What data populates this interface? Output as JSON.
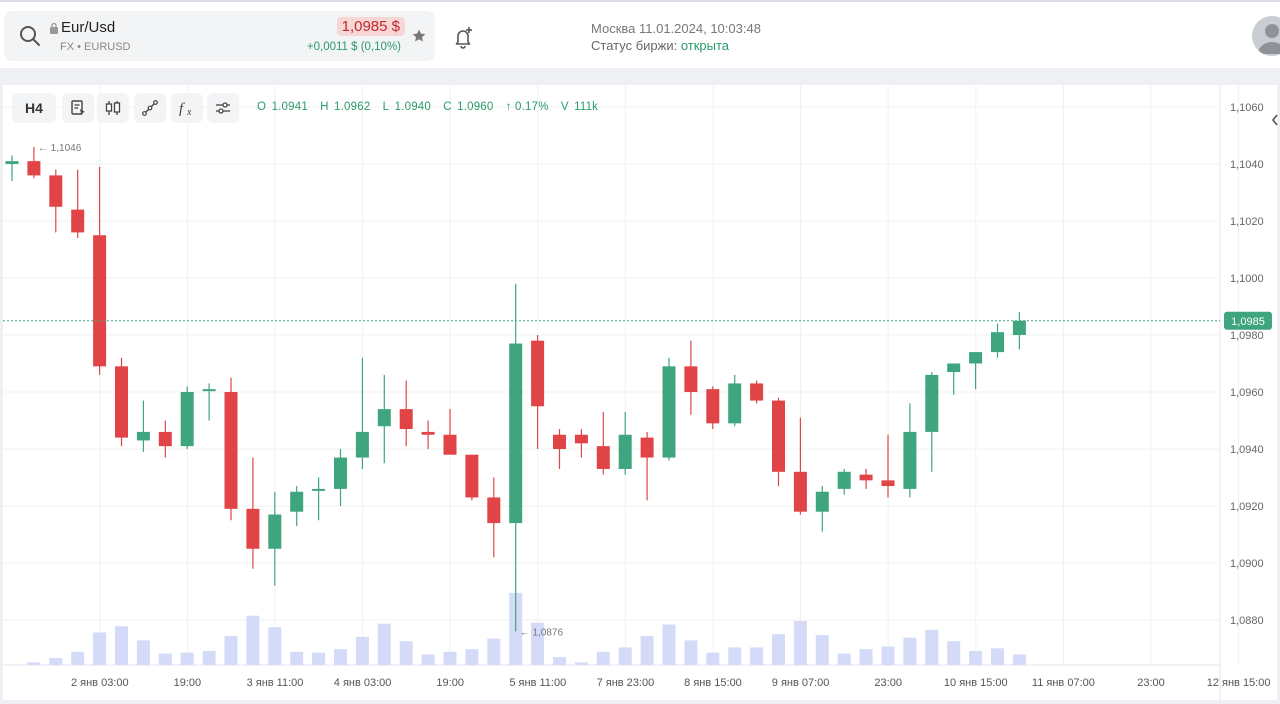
{
  "header": {
    "symbol": "Eur/Usd",
    "market": "FX",
    "ticker": "EURUSD",
    "price": "1,0985 $",
    "change": "+0,0011 $ (0,10%)",
    "city_time": "Москва 11.01.2024, 10:03:48",
    "status_label": "Статус биржи:",
    "status_value": "открыта"
  },
  "toolbar": {
    "timeframe": "H4",
    "ohlc": {
      "o_label": "O",
      "o": "1.0941",
      "h_label": "H",
      "h": "1.0962",
      "l_label": "L",
      "l": "1.0940",
      "c_label": "C",
      "c": "1.0960",
      "chg": "↑ 0.17%",
      "v_label": "V",
      "v": "111k"
    }
  },
  "colors": {
    "up": "#3fa57e",
    "down": "#e04446",
    "volume": "#d4dbf8",
    "price_line": "#3fa57e"
  },
  "chart_data": {
    "type": "candlestick",
    "ylim": [
      1.0865,
      1.107
    ],
    "y_ticks": [
      "1,1060",
      "1,1040",
      "1,1020",
      "1,1000",
      "1,0980",
      "1,0960",
      "1,0940",
      "1,0920",
      "1,0900",
      "1,0880"
    ],
    "y_tick_values": [
      1.106,
      1.104,
      1.102,
      1.1,
      1.098,
      1.096,
      1.094,
      1.092,
      1.09,
      1.088
    ],
    "x_ticks": [
      "2 янв 03:00",
      "19:00",
      "3 янв 11:00",
      "4 янв 03:00",
      "19:00",
      "5 янв 11:00",
      "7 янв 23:00",
      "8 янв 15:00",
      "9 янв 07:00",
      "23:00",
      "10 янв 15:00",
      "11 янв 07:00",
      "23:00",
      "12 янв 15:00"
    ],
    "x_tick_index": [
      2,
      6,
      10,
      14,
      18,
      22,
      26,
      30,
      34,
      38,
      42,
      46,
      50,
      54
    ],
    "current_price": 1.0985,
    "current_price_label": "1,0985",
    "annotations": [
      {
        "index": 1,
        "value": 1.1046,
        "label": "1,1046"
      },
      {
        "index": 23,
        "value": 1.0876,
        "label": "1,0876"
      }
    ],
    "candles": [
      {
        "o": 1.104,
        "h": 1.1043,
        "l": 1.1034,
        "c": 1.1041,
        "v": 0
      },
      {
        "o": 1.1041,
        "h": 1.1046,
        "l": 1.1035,
        "c": 1.1036,
        "v": 3
      },
      {
        "o": 1.1036,
        "h": 1.1038,
        "l": 1.1016,
        "c": 1.1025,
        "v": 8
      },
      {
        "o": 1.1024,
        "h": 1.1038,
        "l": 1.1014,
        "c": 1.1016,
        "v": 15
      },
      {
        "o": 1.1015,
        "h": 1.1039,
        "l": 1.0966,
        "c": 1.0969,
        "v": 37
      },
      {
        "o": 1.0969,
        "h": 1.0972,
        "l": 1.0941,
        "c": 1.0944,
        "v": 44
      },
      {
        "o": 1.0943,
        "h": 1.0957,
        "l": 1.0939,
        "c": 1.0946,
        "v": 28
      },
      {
        "o": 1.0946,
        "h": 1.095,
        "l": 1.0937,
        "c": 1.0941,
        "v": 13
      },
      {
        "o": 1.0941,
        "h": 1.0962,
        "l": 1.094,
        "c": 1.096,
        "v": 14
      },
      {
        "o": 1.0961,
        "h": 1.0963,
        "l": 1.095,
        "c": 1.0961,
        "v": 16
      },
      {
        "o": 1.096,
        "h": 1.0965,
        "l": 1.0915,
        "c": 1.0919,
        "v": 33
      },
      {
        "o": 1.0919,
        "h": 1.0937,
        "l": 1.0898,
        "c": 1.0905,
        "v": 56
      },
      {
        "o": 1.0905,
        "h": 1.0925,
        "l": 1.0892,
        "c": 1.0917,
        "v": 43
      },
      {
        "o": 1.0918,
        "h": 1.0927,
        "l": 1.0913,
        "c": 1.0925,
        "v": 15
      },
      {
        "o": 1.0926,
        "h": 1.093,
        "l": 1.0915,
        "c": 1.0926,
        "v": 14
      },
      {
        "o": 1.0926,
        "h": 1.094,
        "l": 1.092,
        "c": 1.0937,
        "v": 18
      },
      {
        "o": 1.0937,
        "h": 1.0972,
        "l": 1.0933,
        "c": 1.0946,
        "v": 32
      },
      {
        "o": 1.0948,
        "h": 1.0966,
        "l": 1.0935,
        "c": 1.0954,
        "v": 47
      },
      {
        "o": 1.0954,
        "h": 1.0964,
        "l": 1.0941,
        "c": 1.0947,
        "v": 27
      },
      {
        "o": 1.0946,
        "h": 1.095,
        "l": 1.094,
        "c": 1.0945,
        "v": 12
      },
      {
        "o": 1.0945,
        "h": 1.0954,
        "l": 1.0938,
        "c": 1.0938,
        "v": 15
      },
      {
        "o": 1.0938,
        "h": 1.0938,
        "l": 1.0922,
        "c": 1.0923,
        "v": 18
      },
      {
        "o": 1.0923,
        "h": 1.093,
        "l": 1.0902,
        "c": 1.0914,
        "v": 30
      },
      {
        "o": 1.0914,
        "h": 1.0998,
        "l": 1.0876,
        "c": 1.0977,
        "v": 82
      },
      {
        "o": 1.0978,
        "h": 1.098,
        "l": 1.094,
        "c": 1.0955,
        "v": 48
      },
      {
        "o": 1.0945,
        "h": 1.0947,
        "l": 1.0933,
        "c": 1.094,
        "v": 9
      },
      {
        "o": 1.0945,
        "h": 1.0947,
        "l": 1.0937,
        "c": 1.0942,
        "v": 3
      },
      {
        "o": 1.0941,
        "h": 1.0953,
        "l": 1.0931,
        "c": 1.0933,
        "v": 15
      },
      {
        "o": 1.0933,
        "h": 1.0953,
        "l": 1.0931,
        "c": 1.0945,
        "v": 20
      },
      {
        "o": 1.0944,
        "h": 1.0946,
        "l": 1.0922,
        "c": 1.0937,
        "v": 33
      },
      {
        "o": 1.0937,
        "h": 1.0972,
        "l": 1.0936,
        "c": 1.0969,
        "v": 46
      },
      {
        "o": 1.0969,
        "h": 1.0978,
        "l": 1.0952,
        "c": 1.096,
        "v": 28
      },
      {
        "o": 1.0961,
        "h": 1.0962,
        "l": 1.0947,
        "c": 1.0949,
        "v": 14
      },
      {
        "o": 1.0949,
        "h": 1.0966,
        "l": 1.0948,
        "c": 1.0963,
        "v": 20
      },
      {
        "o": 1.0963,
        "h": 1.0964,
        "l": 1.0956,
        "c": 1.0957,
        "v": 20
      },
      {
        "o": 1.0957,
        "h": 1.0958,
        "l": 1.0927,
        "c": 1.0932,
        "v": 35
      },
      {
        "o": 1.0932,
        "h": 1.0951,
        "l": 1.0917,
        "c": 1.0918,
        "v": 50
      },
      {
        "o": 1.0918,
        "h": 1.0927,
        "l": 1.0911,
        "c": 1.0925,
        "v": 34
      },
      {
        "o": 1.0926,
        "h": 1.0933,
        "l": 1.0924,
        "c": 1.0932,
        "v": 13
      },
      {
        "o": 1.0931,
        "h": 1.0933,
        "l": 1.0926,
        "c": 1.0929,
        "v": 18
      },
      {
        "o": 1.0929,
        "h": 1.0945,
        "l": 1.0923,
        "c": 1.0927,
        "v": 21
      },
      {
        "o": 1.0926,
        "h": 1.0956,
        "l": 1.0923,
        "c": 1.0946,
        "v": 31
      },
      {
        "o": 1.0946,
        "h": 1.0967,
        "l": 1.0932,
        "c": 1.0966,
        "v": 40
      },
      {
        "o": 1.0967,
        "h": 1.097,
        "l": 1.0959,
        "c": 1.097,
        "v": 27
      },
      {
        "o": 1.097,
        "h": 1.0974,
        "l": 1.0961,
        "c": 1.0974,
        "v": 16
      },
      {
        "o": 1.0974,
        "h": 1.0984,
        "l": 1.0972,
        "c": 1.0981,
        "v": 19
      },
      {
        "o": 1.098,
        "h": 1.0988,
        "l": 1.0975,
        "c": 1.0985,
        "v": 12
      }
    ]
  }
}
